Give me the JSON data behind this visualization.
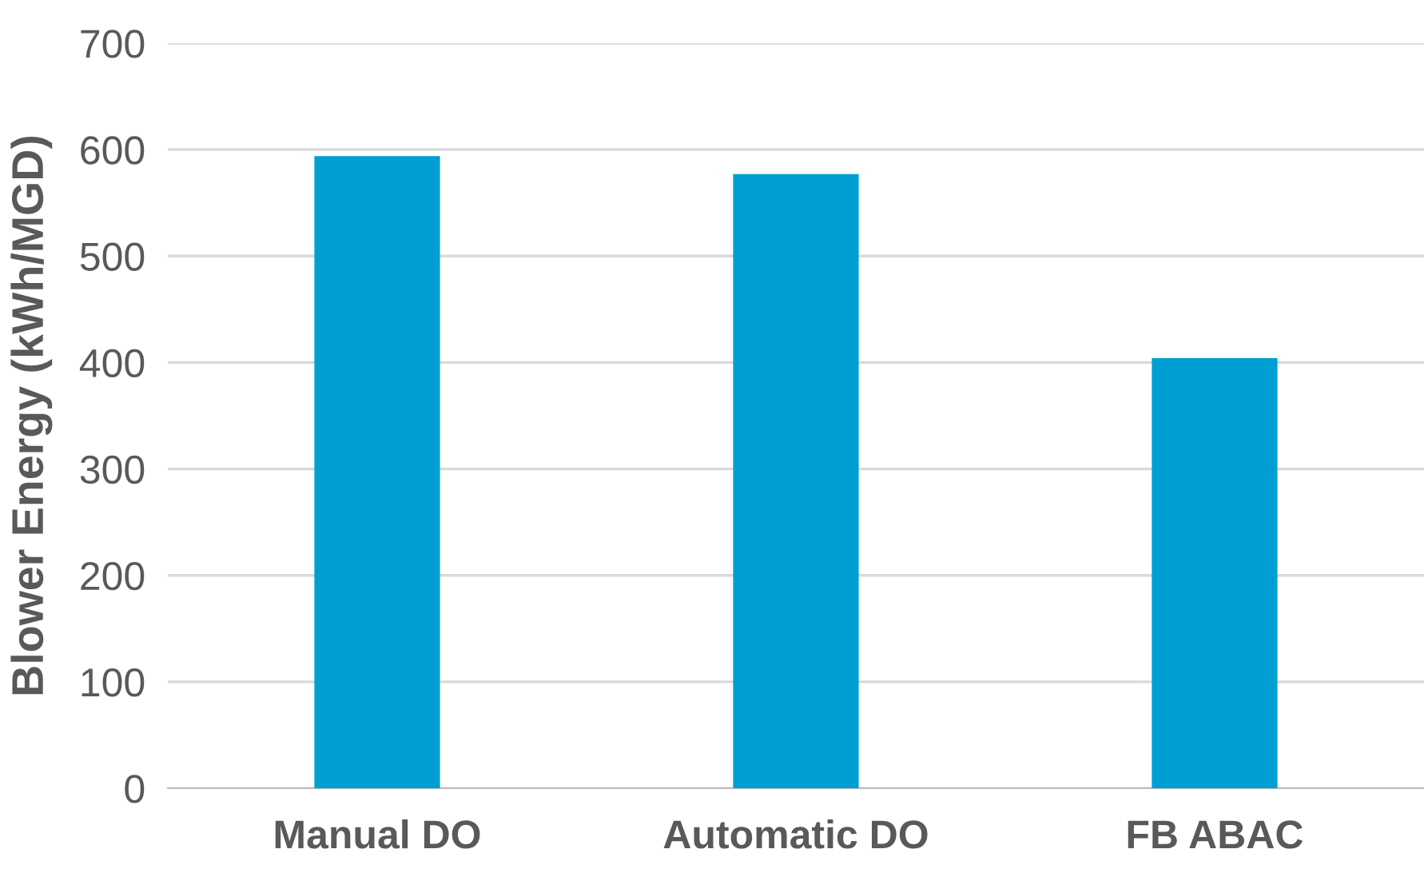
{
  "chart_data": {
    "type": "bar",
    "ylabel": "Blower Energy (kWh/MGD)",
    "categories": [
      "Manual DO",
      "Automatic DO",
      "FB ABAC"
    ],
    "values": [
      594,
      577,
      404
    ],
    "color": "#009fd3",
    "ylim": [
      0,
      700
    ],
    "yticks": [
      0,
      100,
      200,
      300,
      400,
      500,
      600,
      700
    ],
    "grid": "y"
  }
}
